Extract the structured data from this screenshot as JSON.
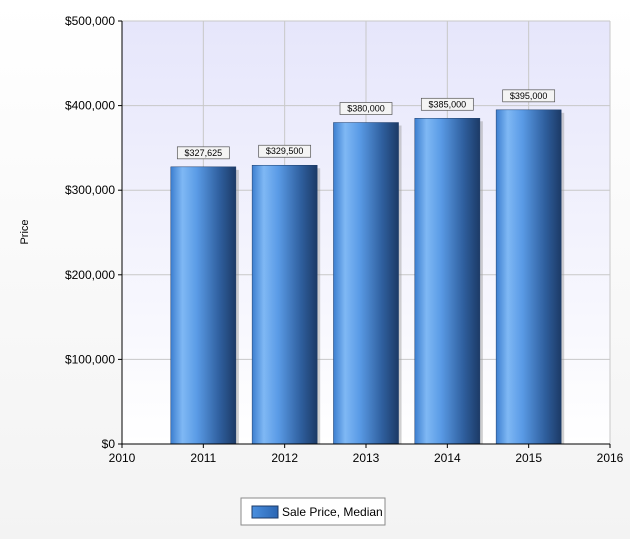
{
  "chart_data": {
    "type": "bar",
    "title": "",
    "xlabel": "",
    "ylabel": "Price",
    "x_ticks": [
      "2010",
      "2011",
      "2012",
      "2013",
      "2014",
      "2015",
      "2016"
    ],
    "xlim": [
      2010,
      2016
    ],
    "ylim": [
      0,
      500000
    ],
    "y_ticks": [
      0,
      100000,
      200000,
      300000,
      400000,
      500000
    ],
    "y_tick_labels": [
      "$0",
      "$100,000",
      "$200,000",
      "$300,000",
      "$400,000",
      "$500,000"
    ],
    "grid": true,
    "legend_position": "bottom-center",
    "series": [
      {
        "name": "Sale Price, Median",
        "color": "#4a8fdf",
        "x": [
          2011,
          2012,
          2013,
          2014,
          2015
        ],
        "values": [
          327625,
          329500,
          380000,
          385000,
          395000
        ],
        "labels": [
          "$327,625",
          "$329,500",
          "$380,000",
          "$385,000",
          "$395,000"
        ]
      }
    ]
  }
}
